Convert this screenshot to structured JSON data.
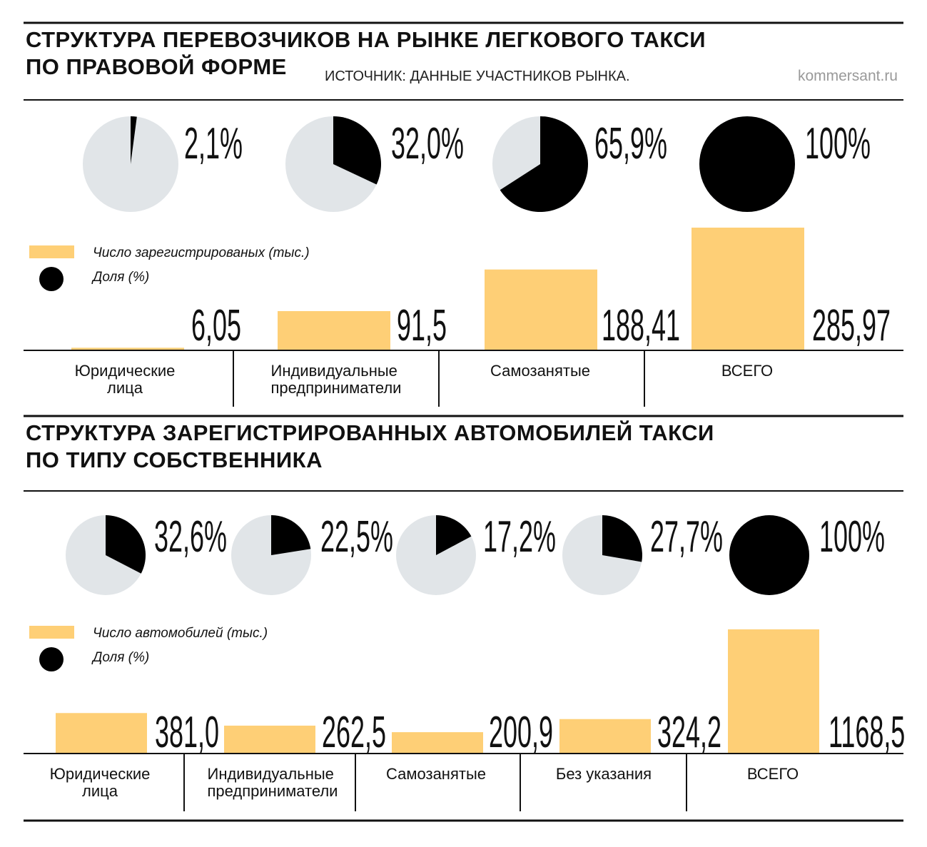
{
  "chart_data": [
    {
      "type": "bar",
      "title": [
        "СТРУКТУРА ПЕРЕВОЗЧИКОВ НА РЫНКЕ ЛЕГКОВОГО ТАКСИ",
        "ПО ПРАВОВОЙ ФОРМЕ"
      ],
      "source": "ИСТОЧНИК: ДАННЫЕ УЧАСТНИКОВ РЫНКА.",
      "credit": "kommersant.ru",
      "categories": [
        "Юридические лица",
        "Индивидуальные предприниматели",
        "Самозанятые",
        "ВСЕГО"
      ],
      "series": [
        {
          "name": "Число зарегистрированых (тыс.)",
          "color": "#fecf76",
          "values": [
            6.05,
            91.5,
            188.41,
            285.97
          ],
          "value_labels": [
            "6,05",
            "91,5",
            "188,41",
            "285,97"
          ]
        },
        {
          "name": "Доля (%)",
          "type": "pie",
          "color": "#000000",
          "background": "#e1e5e8",
          "values": [
            2.1,
            32.0,
            65.9,
            100
          ],
          "value_labels": [
            "2,1%",
            "32,0%",
            "65,9%",
            "100%"
          ]
        }
      ]
    },
    {
      "type": "bar",
      "title": [
        "СТРУКТУРА ЗАРЕГИСТРИРОВАННЫХ АВТОМОБИЛЕЙ ТАКСИ",
        "ПО ТИПУ СОБСТВЕННИКА"
      ],
      "categories": [
        "Юридические лица",
        "Индивидуальные предприниматели",
        "Самозанятые",
        "Без указания",
        "ВСЕГО"
      ],
      "series": [
        {
          "name": "Число автомобилей (тыс.)",
          "color": "#fecf76",
          "values": [
            381.0,
            262.5,
            200.9,
            324.2,
            1168.5
          ],
          "value_labels": [
            "381,0",
            "262,5",
            "200,9",
            "324,2",
            "1168,5"
          ]
        },
        {
          "name": "Доля (%)",
          "type": "pie",
          "color": "#000000",
          "background": "#e1e5e8",
          "values": [
            32.6,
            22.5,
            17.2,
            27.7,
            100
          ],
          "value_labels": [
            "32,6%",
            "22,5%",
            "17,2%",
            "27,7%",
            "100%"
          ]
        }
      ]
    }
  ]
}
